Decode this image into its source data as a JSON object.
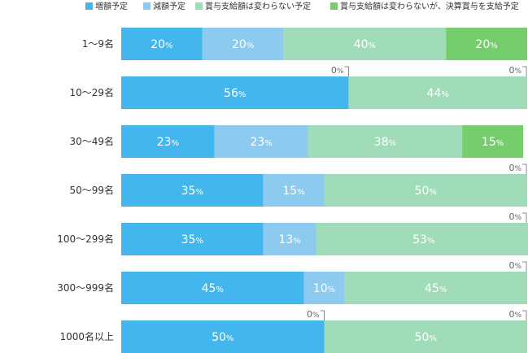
{
  "chart_data": {
    "type": "bar",
    "orientation": "horizontal",
    "stacked": true,
    "percent": true,
    "legend_position": "top-right",
    "grid": false,
    "unit": "%",
    "categories": [
      "1〜9名",
      "10〜29名",
      "30〜49名",
      "50〜99名",
      "100〜299名",
      "300〜999名",
      "1000名以上"
    ],
    "series": [
      {
        "name": "増額予定",
        "color": "#44b6ee",
        "values": [
          20,
          56,
          23,
          35,
          35,
          45,
          50
        ]
      },
      {
        "name": "減額予定",
        "color": "#8ccbef",
        "values": [
          20,
          0,
          23,
          15,
          13,
          10,
          0
        ]
      },
      {
        "name": "賞与支給額は変わらない予定",
        "color": "#a1dcb8",
        "values": [
          40,
          44,
          38,
          50,
          53,
          45,
          50
        ]
      },
      {
        "name": "賞与支給額は変わらないが、決算賞与を支給予定",
        "color": "#76cd6d",
        "values": [
          20,
          0,
          15,
          0,
          0,
          0,
          0
        ]
      }
    ]
  }
}
